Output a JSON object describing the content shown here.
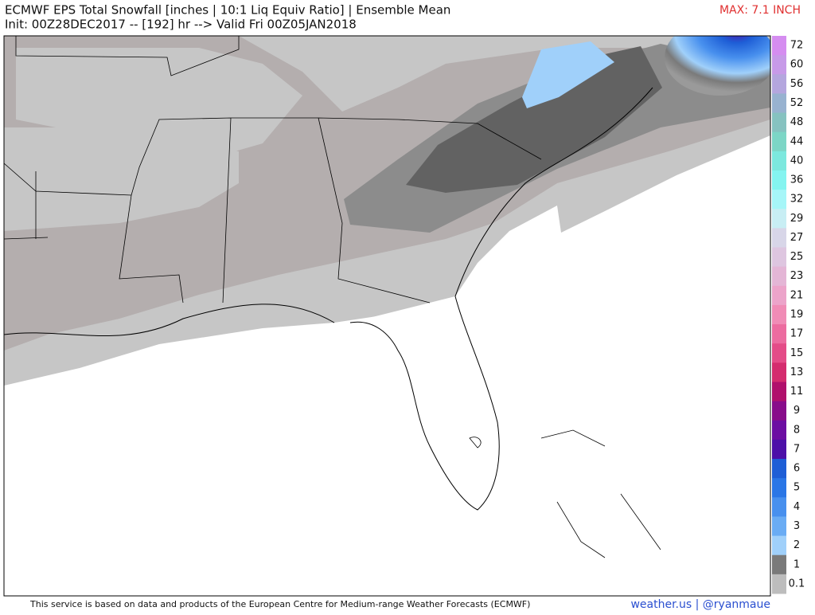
{
  "header": {
    "title": "ECMWF EPS Total Snowfall [inches | 10:1 Liq Equiv Ratio] | Ensemble Mean",
    "subtitle": "Init: 00Z28DEC2017 -- [192] hr --> Valid Fri 00Z05JAN2018",
    "max_label": "MAX: 7.1 INCH"
  },
  "colorbar": [
    {
      "label": "72",
      "color": "#d58df0"
    },
    {
      "label": "60",
      "color": "#c79ae8"
    },
    {
      "label": "56",
      "color": "#b4a6de"
    },
    {
      "label": "52",
      "color": "#98b2d0"
    },
    {
      "label": "48",
      "color": "#86c2c0"
    },
    {
      "label": "44",
      "color": "#7cd6c6"
    },
    {
      "label": "40",
      "color": "#7ce8de"
    },
    {
      "label": "36",
      "color": "#84f4f0"
    },
    {
      "label": "32",
      "color": "#a6f6f8"
    },
    {
      "label": "29",
      "color": "#c8eef4"
    },
    {
      "label": "27",
      "color": "#d8d6e8"
    },
    {
      "label": "25",
      "color": "#dec6e0"
    },
    {
      "label": "23",
      "color": "#e4b6d6"
    },
    {
      "label": "21",
      "color": "#eca4ca"
    },
    {
      "label": "19",
      "color": "#f08cb6"
    },
    {
      "label": "17",
      "color": "#ec6ca0"
    },
    {
      "label": "15",
      "color": "#e44c88"
    },
    {
      "label": "13",
      "color": "#d42c6e"
    },
    {
      "label": "11",
      "color": "#b0106c"
    },
    {
      "label": "9",
      "color": "#880c8a"
    },
    {
      "label": "8",
      "color": "#6c0ea2"
    },
    {
      "label": "7",
      "color": "#4c10a8"
    },
    {
      "label": "6",
      "color": "#1e5ed6"
    },
    {
      "label": "5",
      "color": "#2a76e6"
    },
    {
      "label": "4",
      "color": "#4890ee"
    },
    {
      "label": "3",
      "color": "#6aacf4"
    },
    {
      "label": "2",
      "color": "#a0d0fa"
    },
    {
      "label": "1",
      "color": "#7a7a7a"
    },
    {
      "label": "0.1",
      "color": "#bdbdbd"
    }
  ],
  "footer": {
    "credit": "This service is based on data and products of the European Centre for Medium-range Weather Forecasts (ECMWF)",
    "site": "weather.us | @ryanmaue"
  }
}
